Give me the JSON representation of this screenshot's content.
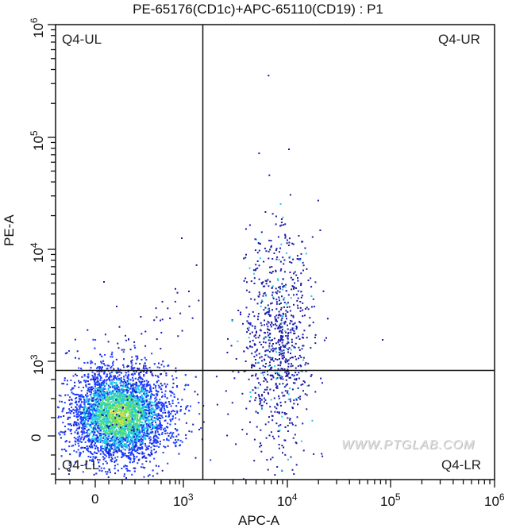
{
  "chart_data": {
    "type": "scatter",
    "subtype": "flow-cytometry-density-dot-plot",
    "title": "PE-65176(CD1c)+APC-65110(CD19) : P1",
    "xlabel": "APC-A",
    "ylabel": "PE-A",
    "x_scale": "biexponential",
    "y_scale": "biexponential",
    "x_ticks": [
      "0",
      "10^3",
      "10^4",
      "10^5",
      "10^6"
    ],
    "y_ticks": [
      "0",
      "10^3",
      "10^4",
      "10^5",
      "10^6"
    ],
    "xlim": [
      "~-500",
      "10^6"
    ],
    "ylim": [
      "~-500",
      "10^6"
    ],
    "gate": {
      "type": "quadrant",
      "name": "Q4",
      "x_threshold": 1500,
      "y_threshold": 700
    },
    "quadrants": [
      {
        "label": "Q4-UL",
        "position": "upper-left",
        "approx_events": "very few"
      },
      {
        "label": "Q4-UR",
        "position": "upper-right",
        "approx_events": "moderate (CD1c+ CD19+ cluster upper part)"
      },
      {
        "label": "Q4-LL",
        "position": "lower-left",
        "approx_events": "majority (dense double-negative population)"
      },
      {
        "label": "Q4-LR",
        "position": "lower-right",
        "approx_events": "moderate (CD19+ cluster lower part)"
      }
    ],
    "populations": [
      {
        "name": "double-negative",
        "x_center": "~150",
        "y_center": "~50",
        "density": "high",
        "colors": "blue-cyan-green-yellow"
      },
      {
        "name": "CD19+ cluster",
        "x_center": "~1.0e4",
        "y_range": [
          "~-200",
          "~3e4"
        ],
        "density": "sparse",
        "colors": "blue"
      }
    ],
    "grid": false,
    "legend": "none",
    "watermark": "WWW.PTGLAB.COM"
  },
  "labels": {
    "title": "PE-65176(CD1c)+APC-65110(CD19) : P1",
    "xlabel": "APC-A",
    "ylabel": "PE-A",
    "y_tick_0": "0",
    "y_tick_3": "10",
    "y_tick_4": "10",
    "y_tick_5": "10",
    "y_tick_6": "10",
    "exp_3": "3",
    "exp_4": "4",
    "exp_5": "5",
    "exp_6": "6",
    "x_tick_0": "0",
    "x_tick_3": "10",
    "x_tick_4": "10",
    "x_tick_5": "10",
    "x_tick_6": "10",
    "q_ul": "Q4-UL",
    "q_ur": "Q4-UR",
    "q_ll": "Q4-LL",
    "q_lr": "Q4-LR",
    "watermark": "WWW.PTGLAB.COM"
  },
  "colors": {
    "axis": "#111111",
    "sparse_dot": "#1a1aa8",
    "dense_low": "#1e3cff",
    "dense_mid": "#20c8e6",
    "dense_high": "#5de070",
    "dense_peak": "#d6e040"
  }
}
